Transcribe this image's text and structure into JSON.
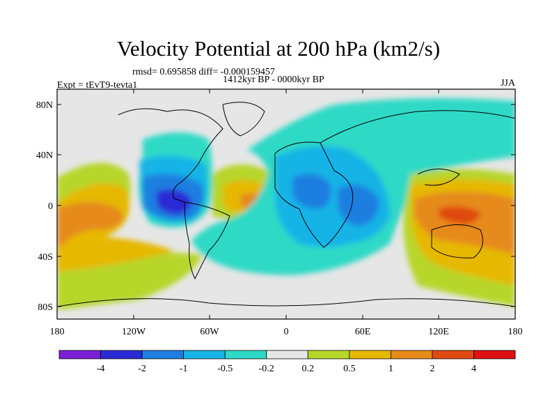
{
  "title": "Velocity Potential at 200 hPa (km2/s)",
  "stats": "rmsd= 0.695858 diff= -0.000159457",
  "period": "1412kyr BP - 0000kyr BP",
  "experiment": "Expt = tEvT9-tevta1",
  "season": "JJA",
  "lat_labels": [
    "80N",
    "40N",
    "0",
    "40S",
    "80S"
  ],
  "lon_labels": [
    "180",
    "120W",
    "60W",
    "0",
    "60E",
    "120E",
    "180"
  ],
  "colorbar": {
    "labels": [
      "-4",
      "-2",
      "-1",
      "-0.5",
      "-0.2",
      "0.2",
      "0.5",
      "1",
      "2",
      "4"
    ],
    "colors": [
      "#7a1fd6",
      "#2b2bd6",
      "#1e7fe0",
      "#18b4e6",
      "#2ed9c6",
      "#e6e6e6",
      "#b8d62a",
      "#e6b800",
      "#e68a1a",
      "#e04a10",
      "#e01010"
    ]
  },
  "theme": {
    "background": "#e6e6e6",
    "coastline": "#000000"
  }
}
